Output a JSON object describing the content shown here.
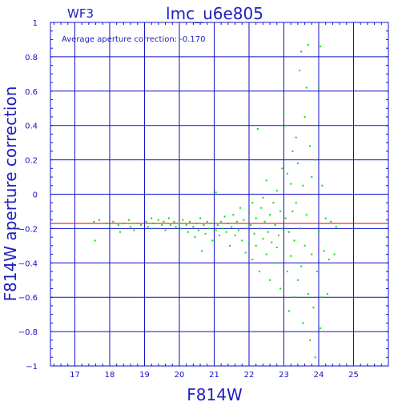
{
  "chart_data": {
    "type": "scatter",
    "title": "lmc_u6e805",
    "subtitle": "WF3",
    "annotation": "Average aperture correction: -0.170",
    "xlabel": "F814W",
    "ylabel": "F814W aperture correction",
    "xlim": [
      16.3,
      26.0
    ],
    "ylim": [
      -1.0,
      1.0
    ],
    "xticks": [
      17,
      18,
      19,
      20,
      21,
      22,
      23,
      24,
      25
    ],
    "yticks": [
      -1,
      -0.8,
      -0.6,
      -0.4,
      -0.2,
      0,
      0.2,
      0.4,
      0.6,
      0.8,
      1
    ],
    "ytick_labels": [
      "−1",
      "−0.8",
      "−0.6",
      "−0.4",
      "−0.2",
      "0",
      "0.2",
      "0.4",
      "0.6",
      "0.8",
      "1"
    ],
    "grid": true,
    "reference_line": {
      "y": -0.17,
      "color": "#e00000"
    },
    "colors": {
      "axes": "#1010c8",
      "points": "#00e000",
      "reference": "#e00000"
    },
    "points": [
      [
        17.55,
        -0.16
      ],
      [
        17.58,
        -0.27
      ],
      [
        17.7,
        -0.15
      ],
      [
        17.9,
        -0.17
      ],
      [
        18.0,
        -0.19
      ],
      [
        18.1,
        -0.16
      ],
      [
        18.25,
        -0.18
      ],
      [
        18.3,
        -0.22
      ],
      [
        18.4,
        -0.17
      ],
      [
        18.55,
        -0.15
      ],
      [
        18.6,
        -0.19
      ],
      [
        18.7,
        -0.21
      ],
      [
        18.8,
        -0.17
      ],
      [
        18.9,
        -0.18
      ],
      [
        19.05,
        -0.16
      ],
      [
        19.1,
        -0.19
      ],
      [
        19.2,
        -0.14
      ],
      [
        19.25,
        -0.17
      ],
      [
        19.3,
        -0.2
      ],
      [
        19.4,
        -0.15
      ],
      [
        19.5,
        -0.18
      ],
      [
        19.55,
        -0.16
      ],
      [
        19.6,
        -0.21
      ],
      [
        19.7,
        -0.14
      ],
      [
        19.75,
        -0.18
      ],
      [
        19.85,
        -0.16
      ],
      [
        19.9,
        -0.19
      ],
      [
        20.0,
        -0.17
      ],
      [
        20.05,
        -0.2
      ],
      [
        20.1,
        -0.15
      ],
      [
        20.2,
        -0.18
      ],
      [
        20.25,
        -0.22
      ],
      [
        20.3,
        -0.16
      ],
      [
        20.4,
        -0.19
      ],
      [
        20.45,
        -0.25
      ],
      [
        20.5,
        -0.17
      ],
      [
        20.55,
        -0.21
      ],
      [
        20.6,
        -0.14
      ],
      [
        20.65,
        -0.33
      ],
      [
        20.7,
        -0.18
      ],
      [
        20.75,
        -0.23
      ],
      [
        20.8,
        -0.16
      ],
      [
        20.85,
        -0.2
      ],
      [
        20.9,
        -0.17
      ],
      [
        20.95,
        -0.27
      ],
      [
        21.0,
        -0.15
      ],
      [
        21.05,
        -0.21
      ],
      [
        21.05,
        0.01
      ],
      [
        21.1,
        -0.18
      ],
      [
        21.15,
        -0.24
      ],
      [
        21.2,
        -0.16
      ],
      [
        21.25,
        -0.2
      ],
      [
        21.3,
        -0.13
      ],
      [
        21.35,
        -0.22
      ],
      [
        21.4,
        -0.17
      ],
      [
        21.45,
        -0.3
      ],
      [
        21.5,
        -0.19
      ],
      [
        21.55,
        -0.12
      ],
      [
        21.6,
        -0.24
      ],
      [
        21.65,
        -0.16
      ],
      [
        21.7,
        -0.21
      ],
      [
        21.75,
        -0.08
      ],
      [
        21.8,
        -0.27
      ],
      [
        21.85,
        -0.15
      ],
      [
        21.9,
        -0.34
      ],
      [
        21.95,
        -0.2
      ],
      [
        22.0,
        -0.11
      ],
      [
        22.0,
        -0.29
      ],
      [
        22.05,
        -0.18
      ],
      [
        22.1,
        -0.05
      ],
      [
        22.1,
        -0.38
      ],
      [
        22.15,
        -0.23
      ],
      [
        22.2,
        -0.14
      ],
      [
        22.2,
        -0.3
      ],
      [
        22.25,
        0.38
      ],
      [
        22.3,
        -0.2
      ],
      [
        22.3,
        -0.45
      ],
      [
        22.35,
        -0.08
      ],
      [
        22.4,
        -0.26
      ],
      [
        22.4,
        -0.02
      ],
      [
        22.45,
        -0.16
      ],
      [
        22.5,
        0.08
      ],
      [
        22.5,
        -0.35
      ],
      [
        22.55,
        -0.22
      ],
      [
        22.6,
        -0.12
      ],
      [
        22.6,
        -0.5
      ],
      [
        22.65,
        -0.28
      ],
      [
        22.7,
        -0.05
      ],
      [
        22.7,
        -0.4
      ],
      [
        22.75,
        -0.18
      ],
      [
        22.8,
        0.02
      ],
      [
        22.8,
        -0.31
      ],
      [
        22.85,
        -0.24
      ],
      [
        22.9,
        -0.1
      ],
      [
        22.9,
        -0.55
      ],
      [
        22.95,
        -0.2
      ],
      [
        22.95,
        0.15
      ],
      [
        23.0,
        0.47
      ],
      [
        23.0,
        -0.3
      ],
      [
        23.05,
        0.4
      ],
      [
        23.05,
        -0.14
      ],
      [
        23.1,
        -0.45
      ],
      [
        23.1,
        0.12
      ],
      [
        23.15,
        -0.22
      ],
      [
        23.15,
        -0.68
      ],
      [
        23.2,
        0.06
      ],
      [
        23.2,
        -0.36
      ],
      [
        23.25,
        0.25
      ],
      [
        23.25,
        -0.1
      ],
      [
        23.3,
        -0.6
      ],
      [
        23.3,
        -0.27
      ],
      [
        23.35,
        0.33
      ],
      [
        23.35,
        -0.05
      ],
      [
        23.4,
        -0.5
      ],
      [
        23.4,
        0.18
      ],
      [
        23.45,
        0.72
      ],
      [
        23.45,
        -0.2
      ],
      [
        23.5,
        0.83
      ],
      [
        23.5,
        -0.42
      ],
      [
        23.55,
        0.05
      ],
      [
        23.55,
        -0.75
      ],
      [
        23.6,
        0.45
      ],
      [
        23.6,
        -0.3
      ],
      [
        23.65,
        0.62
      ],
      [
        23.65,
        -0.12
      ],
      [
        23.7,
        0.87
      ],
      [
        23.7,
        -0.58
      ],
      [
        23.75,
        0.28
      ],
      [
        23.75,
        -0.85
      ],
      [
        23.8,
        0.1
      ],
      [
        23.8,
        -0.35
      ],
      [
        23.85,
        -0.66
      ],
      [
        23.9,
        0.2
      ],
      [
        23.9,
        -0.95
      ],
      [
        23.95,
        -0.45
      ],
      [
        24.0,
        0.62
      ],
      [
        24.0,
        -0.22
      ],
      [
        24.05,
        0.86
      ],
      [
        24.05,
        -0.78
      ],
      [
        24.1,
        0.05
      ],
      [
        24.1,
        -0.6
      ],
      [
        24.15,
        -0.33
      ],
      [
        24.2,
        -0.14
      ],
      [
        24.25,
        -0.58
      ],
      [
        24.3,
        -0.38
      ],
      [
        24.35,
        -0.16
      ],
      [
        24.45,
        -0.35
      ],
      [
        24.5,
        -0.19
      ]
    ]
  }
}
